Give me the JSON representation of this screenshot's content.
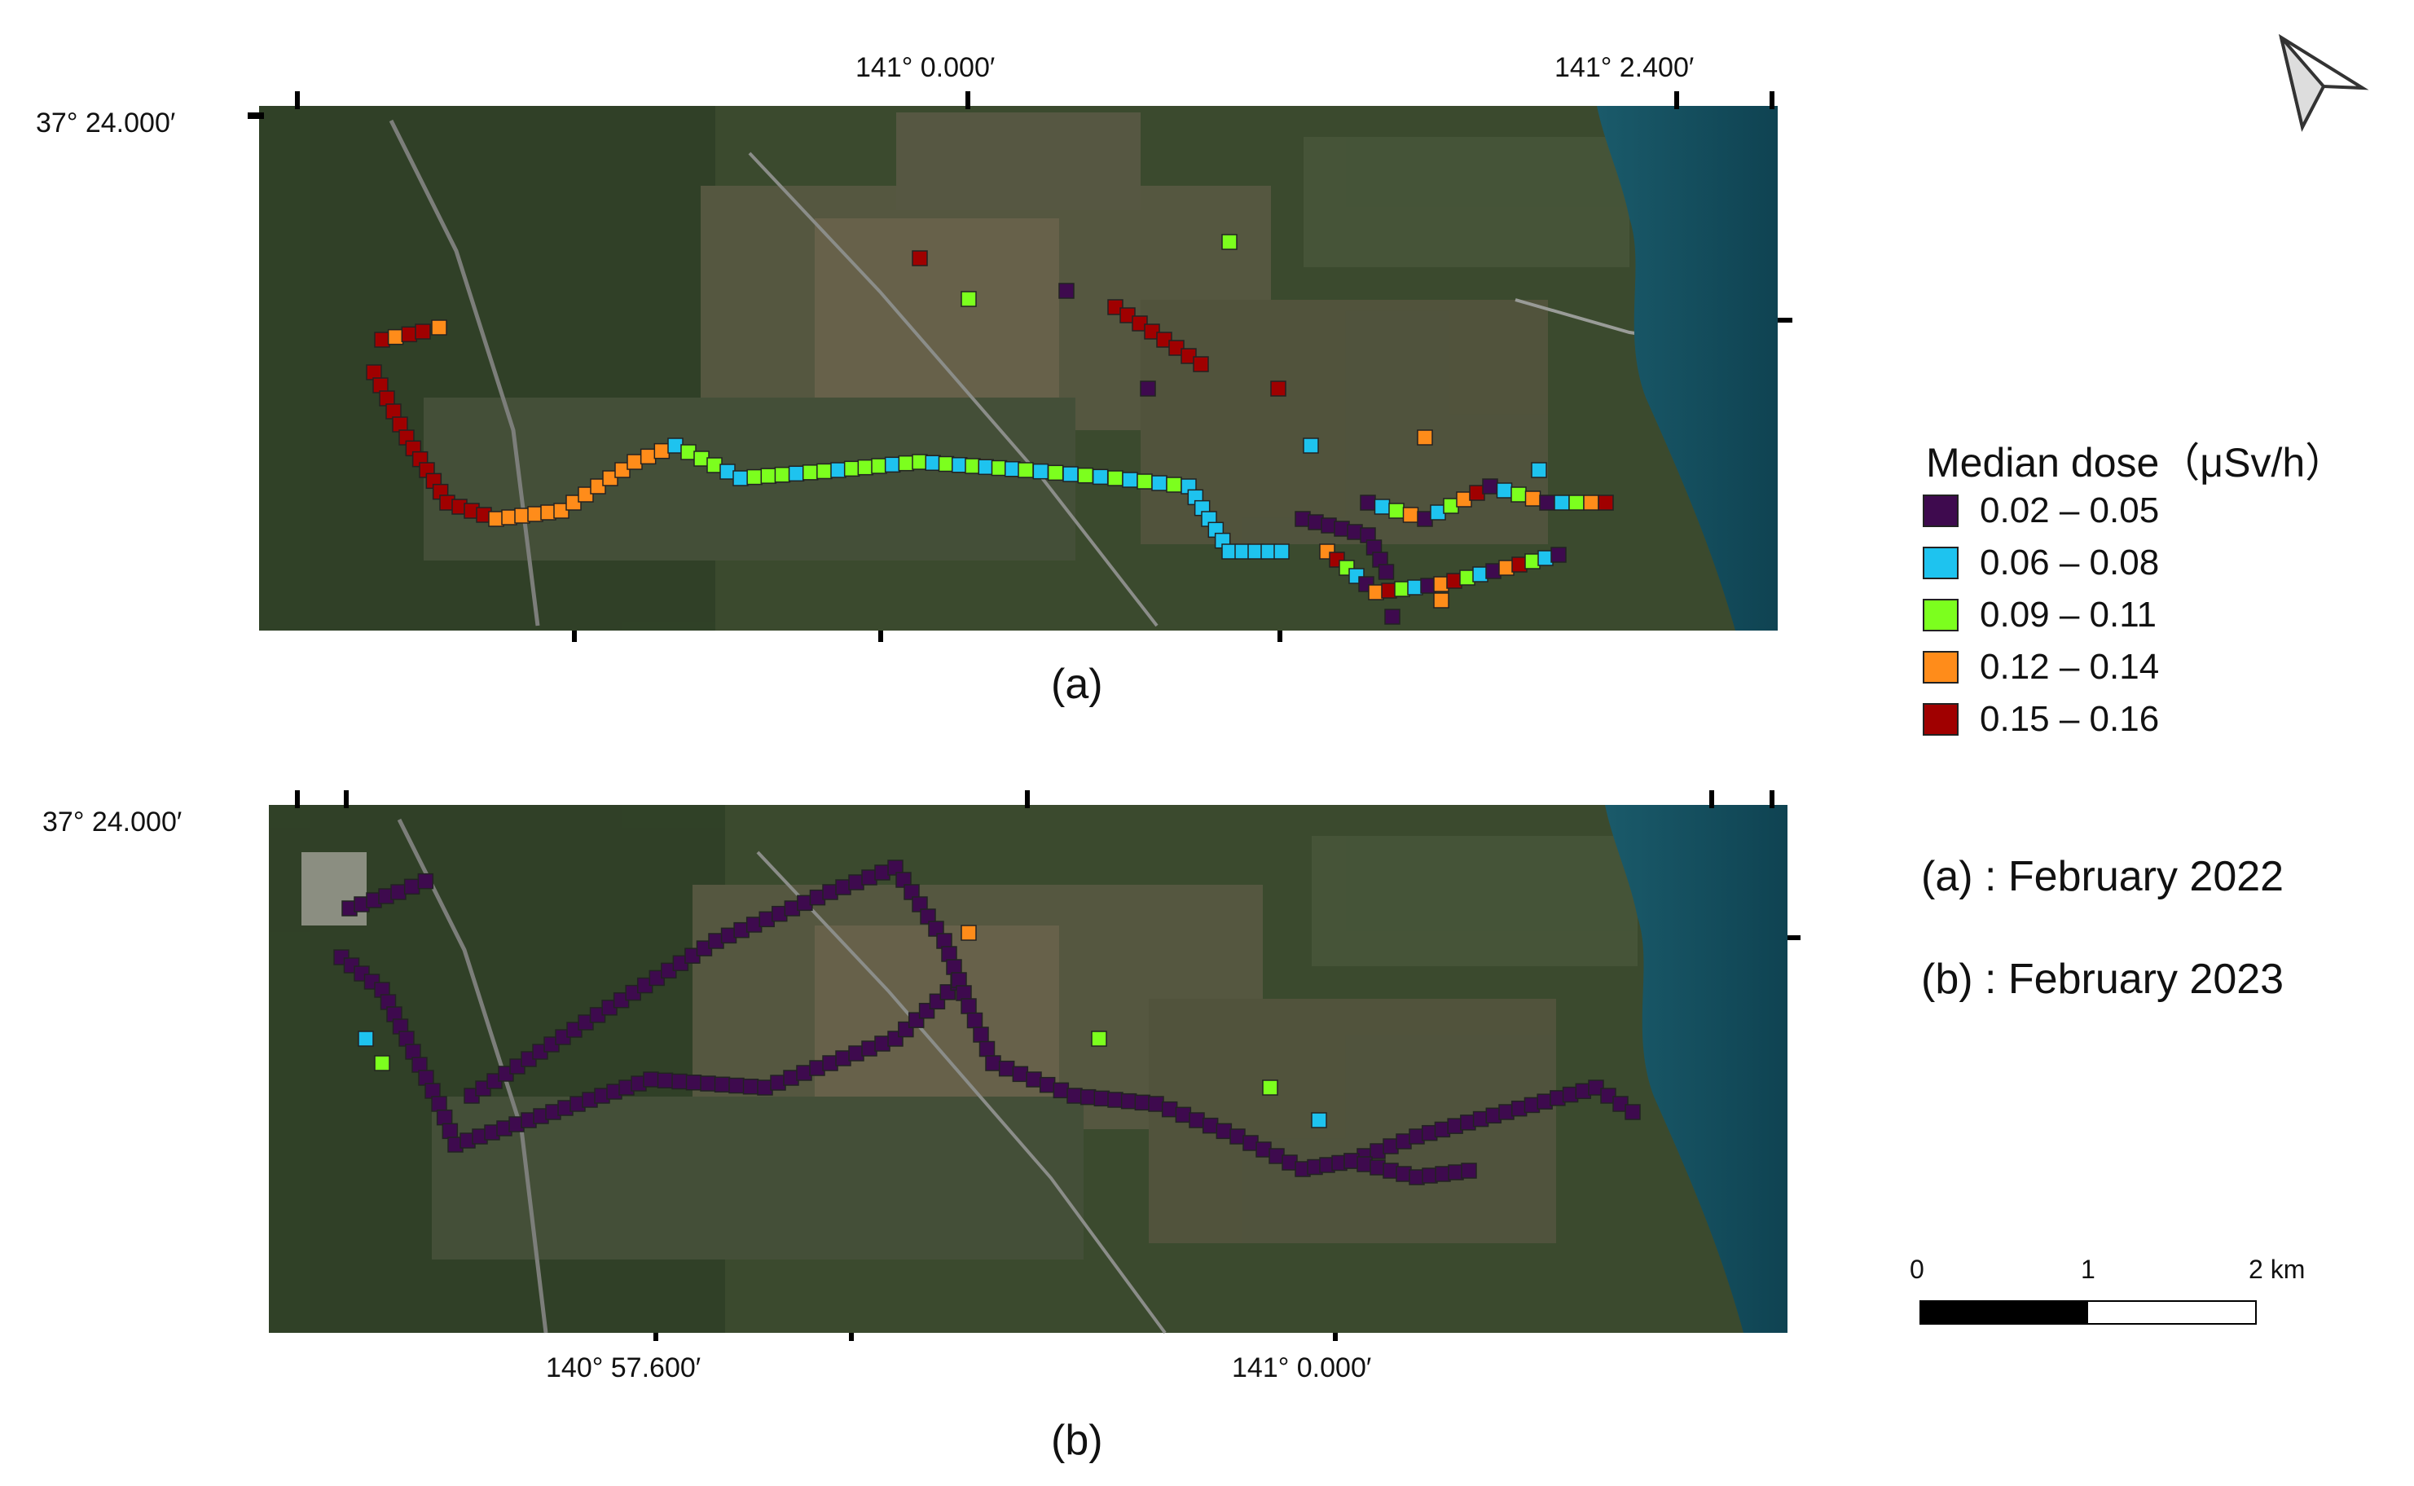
{
  "maps": {
    "a": {
      "label": "(a)",
      "top_coords": [
        "141° 0.000′",
        "141° 2.400′"
      ],
      "left_coords": [
        "37° 24.000′"
      ],
      "bottom_coords": []
    },
    "b": {
      "label": "(b)",
      "top_coords": [],
      "left_coords": [
        "37° 24.000′"
      ],
      "bottom_coords": [
        "140° 57.600′",
        "141° 0.000′"
      ]
    }
  },
  "legend": {
    "title": "Median dose（μSv/h）",
    "items": [
      {
        "label": "0.02 – 0.05",
        "color": "#3e0a4e"
      },
      {
        "label": "0.06 – 0.08",
        "color": "#1ec3ef"
      },
      {
        "label": "0.09 – 0.11",
        "color": "#7cff1e"
      },
      {
        "label": "0.12 – 0.14",
        "color": "#ff8c1a"
      },
      {
        "label": "0.15 – 0.16",
        "color": "#a00000"
      }
    ]
  },
  "periods": [
    "(a) : February 2022",
    "(b) : February 2023"
  ],
  "scale_bar": {
    "labels": [
      "0",
      "1",
      "2 km"
    ]
  },
  "icons": {
    "north_arrow": "north-arrow-icon"
  },
  "colors": {
    "sea": "#0f4a5c",
    "land": "#3a4a2c",
    "field": "#7a6a50"
  }
}
